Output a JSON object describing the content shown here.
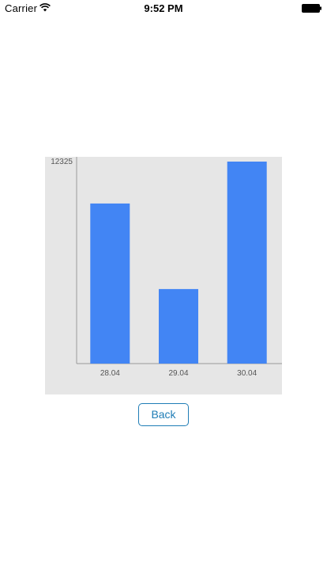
{
  "status_bar": {
    "carrier": "Carrier",
    "time": "9:52 PM",
    "wifi_icon": "wifi-icon",
    "battery_icon": "battery-icon"
  },
  "chart_data": {
    "type": "bar",
    "categories": [
      "28.04",
      "29.04",
      "30.04"
    ],
    "values": [
      9770,
      4550,
      12325
    ],
    "ylim": [
      0,
      12325
    ],
    "ytick_labels": [
      "12325"
    ],
    "bar_color": "#4285f4",
    "background_color": "#e6e6e6",
    "grid": false
  },
  "actions": {
    "back_label": "Back",
    "accent_color": "#1f7db6"
  }
}
